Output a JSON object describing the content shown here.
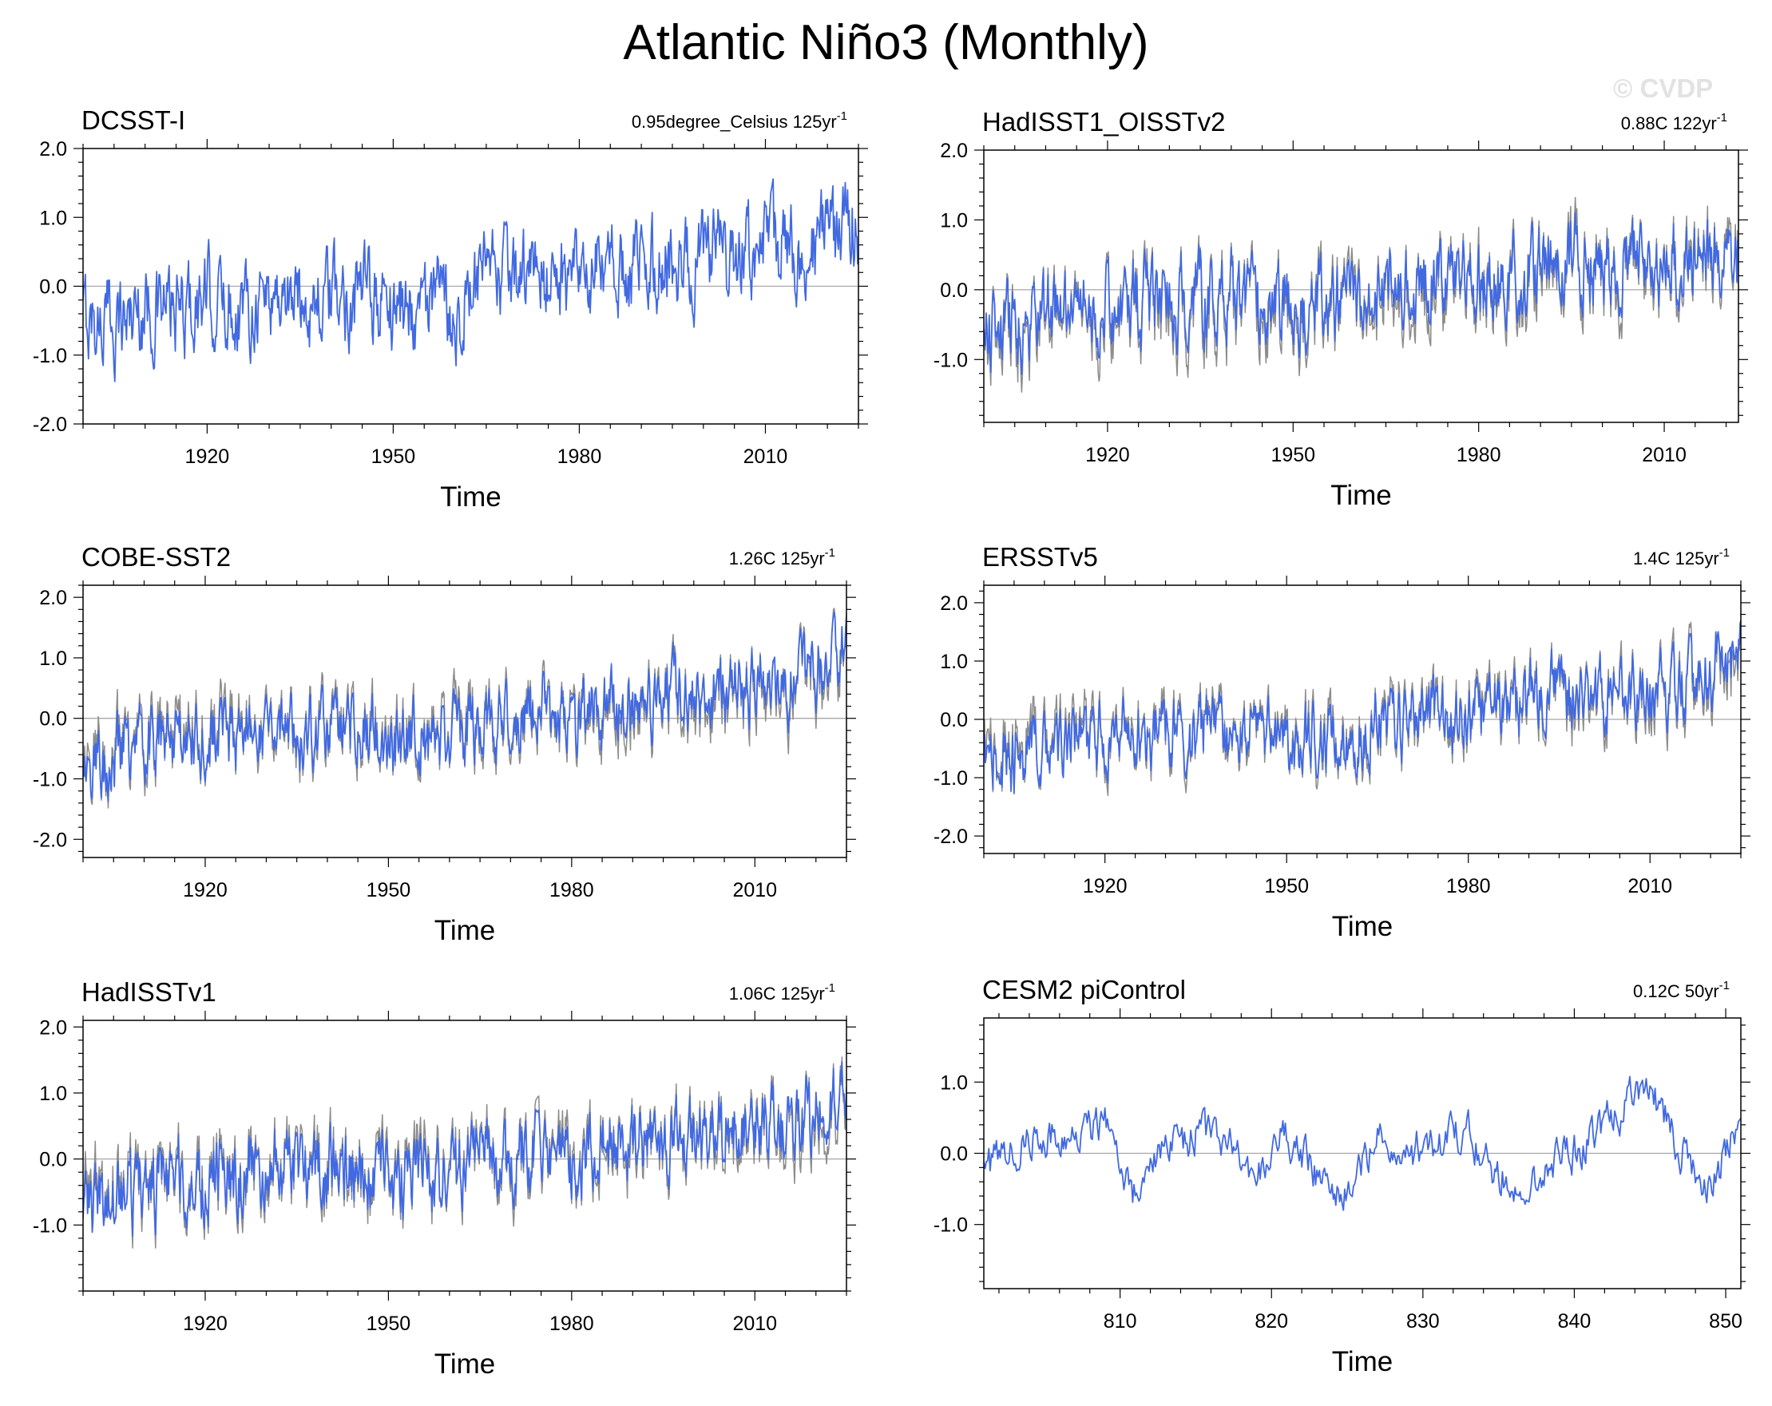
{
  "title": "Atlantic Niño3 (Monthly)",
  "watermark": "© CVDP",
  "colors": {
    "primary": "#4169e1",
    "secondary": "#8c8c8c",
    "zero_line": "#a6a6a6"
  },
  "chart_data": [
    {
      "type": "line",
      "title": "DCSST-I",
      "subtitle": "0.95degree_Celsius 125yr",
      "subtitle_sup": "-1",
      "xlabel": "Time",
      "ylabel": "",
      "xlim": [
        1900,
        2025
      ],
      "ylim": [
        -2.0,
        2.0
      ],
      "xticks": [
        "1920",
        "1950",
        "1980",
        "2010"
      ],
      "yticks": [
        "2.0",
        "1.0",
        "0.0",
        "-1.0",
        "-2.0"
      ],
      "series": [
        {
          "color": "#4169e1",
          "x": [
            1900,
            1905,
            1910,
            1915,
            1920,
            1925,
            1930,
            1935,
            1940,
            1945,
            1950,
            1955,
            1960,
            1965,
            1970,
            1975,
            1980,
            1985,
            1990,
            1995,
            2000,
            2005,
            2010,
            2015,
            2020,
            2024
          ],
          "y": [
            -0.5,
            -0.5,
            -0.3,
            -0.4,
            -0.2,
            -0.3,
            -0.1,
            -0.2,
            -0.2,
            -0.1,
            -0.3,
            -0.2,
            -0.4,
            0.1,
            0.1,
            0.2,
            0.0,
            0.2,
            0.3,
            0.3,
            0.4,
            0.4,
            0.6,
            0.5,
            0.7,
            0.9
          ]
        }
      ]
    },
    {
      "type": "line",
      "title": "HadISST1_OISSTv2",
      "subtitle": "0.88C 122yr",
      "subtitle_sup": "-1",
      "xlabel": "Time",
      "ylabel": "",
      "xlim": [
        1900,
        2022
      ],
      "ylim": [
        -1.9,
        2.0
      ],
      "xticks": [
        "1920",
        "1950",
        "1980",
        "2010"
      ],
      "yticks": [
        "2.0",
        "1.0",
        "0.0",
        "-1.0"
      ],
      "series": [
        {
          "color": "#8c8c8c",
          "x": [
            1900,
            1905,
            1910,
            1915,
            1920,
            1925,
            1930,
            1935,
            1940,
            1945,
            1950,
            1955,
            1960,
            1965,
            1970,
            1975,
            1980,
            1985,
            1990,
            1995,
            2000,
            2005,
            2010,
            2015,
            2020,
            2022
          ],
          "y": [
            -0.7,
            -0.6,
            -0.4,
            -0.3,
            -0.3,
            -0.2,
            -0.2,
            -0.2,
            -0.3,
            -0.2,
            -0.4,
            -0.2,
            -0.2,
            0.0,
            0.0,
            0.1,
            0.1,
            0.2,
            0.2,
            0.3,
            0.3,
            0.3,
            0.4,
            0.4,
            0.6,
            0.5
          ]
        },
        {
          "color": "#4169e1",
          "x": [
            1900,
            1905,
            1910,
            1915,
            1920,
            1925,
            1930,
            1935,
            1940,
            1945,
            1950,
            1955,
            1960,
            1965,
            1970,
            1975,
            1980,
            1985,
            1990,
            1995,
            2000,
            2005,
            2010,
            2015,
            2020,
            2022
          ],
          "y": [
            -0.6,
            -0.5,
            -0.3,
            -0.3,
            -0.2,
            -0.2,
            -0.1,
            -0.1,
            -0.2,
            -0.1,
            -0.3,
            -0.2,
            -0.2,
            0.1,
            0.1,
            0.2,
            0.1,
            0.2,
            0.3,
            0.3,
            0.3,
            0.4,
            0.4,
            0.4,
            0.6,
            0.4
          ]
        }
      ]
    },
    {
      "type": "line",
      "title": "COBE-SST2",
      "subtitle": "1.26C 125yr",
      "subtitle_sup": "-1",
      "xlabel": "Time",
      "ylabel": "",
      "xlim": [
        1900,
        2025
      ],
      "ylim": [
        -2.3,
        2.2
      ],
      "xticks": [
        "1920",
        "1950",
        "1980",
        "2010"
      ],
      "yticks": [
        "2.0",
        "1.0",
        "0.0",
        "-1.0",
        "-2.0"
      ],
      "series": [
        {
          "color": "#8c8c8c",
          "x": [
            1900,
            1905,
            1910,
            1915,
            1920,
            1925,
            1930,
            1935,
            1940,
            1945,
            1950,
            1955,
            1960,
            1965,
            1970,
            1975,
            1980,
            1985,
            1990,
            1995,
            2000,
            2005,
            2010,
            2015,
            2020,
            2024
          ],
          "y": [
            -0.6,
            -0.5,
            -0.4,
            -0.3,
            -0.2,
            -0.2,
            -0.1,
            -0.2,
            -0.2,
            -0.1,
            -0.3,
            -0.3,
            -0.3,
            0.0,
            0.0,
            0.1,
            0.0,
            0.1,
            0.2,
            0.3,
            0.3,
            0.3,
            0.5,
            0.4,
            0.7,
            0.9
          ]
        },
        {
          "color": "#4169e1",
          "x": [
            1900,
            1905,
            1910,
            1915,
            1920,
            1925,
            1930,
            1935,
            1940,
            1945,
            1950,
            1955,
            1960,
            1965,
            1970,
            1975,
            1980,
            1985,
            1990,
            1995,
            2000,
            2005,
            2010,
            2015,
            2020,
            2024
          ],
          "y": [
            -0.7,
            -0.6,
            -0.4,
            -0.4,
            -0.3,
            -0.3,
            -0.1,
            -0.2,
            -0.2,
            -0.1,
            -0.4,
            -0.3,
            -0.4,
            0.0,
            0.0,
            0.1,
            0.0,
            0.2,
            0.3,
            0.3,
            0.4,
            0.4,
            0.6,
            0.5,
            0.8,
            1.0
          ]
        }
      ]
    },
    {
      "type": "line",
      "title": "ERSSTv5",
      "subtitle": "1.4C 125yr",
      "subtitle_sup": "-1",
      "xlabel": "Time",
      "ylabel": "",
      "xlim": [
        1900,
        2025
      ],
      "ylim": [
        -2.3,
        2.3
      ],
      "xticks": [
        "1920",
        "1950",
        "1980",
        "2010"
      ],
      "yticks": [
        "2.0",
        "1.0",
        "0.0",
        "-1.0",
        "-2.0"
      ],
      "series": [
        {
          "color": "#8c8c8c",
          "x": [
            1900,
            1905,
            1910,
            1915,
            1920,
            1925,
            1930,
            1935,
            1940,
            1945,
            1950,
            1955,
            1960,
            1965,
            1970,
            1975,
            1980,
            1985,
            1990,
            1995,
            2000,
            2005,
            2010,
            2015,
            2020,
            2024
          ],
          "y": [
            -0.7,
            -0.6,
            -0.4,
            -0.3,
            -0.3,
            -0.2,
            -0.2,
            -0.2,
            -0.2,
            -0.1,
            -0.3,
            -0.3,
            -0.3,
            0.0,
            0.0,
            0.1,
            0.1,
            0.2,
            0.3,
            0.3,
            0.3,
            0.4,
            0.5,
            0.5,
            0.7,
            0.9
          ]
        },
        {
          "color": "#4169e1",
          "x": [
            1900,
            1905,
            1910,
            1915,
            1920,
            1925,
            1930,
            1935,
            1940,
            1945,
            1950,
            1955,
            1960,
            1965,
            1970,
            1975,
            1980,
            1985,
            1990,
            1995,
            2000,
            2005,
            2010,
            2015,
            2020,
            2024
          ],
          "y": [
            -0.8,
            -0.7,
            -0.5,
            -0.4,
            -0.3,
            -0.3,
            -0.2,
            -0.2,
            -0.2,
            -0.1,
            -0.4,
            -0.3,
            -0.4,
            0.0,
            0.0,
            0.1,
            0.1,
            0.2,
            0.3,
            0.4,
            0.4,
            0.4,
            0.6,
            0.5,
            0.8,
            1.1
          ]
        }
      ]
    },
    {
      "type": "line",
      "title": "HadISSTv1",
      "subtitle": "1.06C 125yr",
      "subtitle_sup": "-1",
      "xlabel": "Time",
      "ylabel": "",
      "xlim": [
        1900,
        2025
      ],
      "ylim": [
        -2.0,
        2.1
      ],
      "xticks": [
        "1920",
        "1950",
        "1980",
        "2010"
      ],
      "yticks": [
        "2.0",
        "1.0",
        "0.0",
        "-1.0"
      ],
      "series": [
        {
          "color": "#8c8c8c",
          "x": [
            1900,
            1905,
            1910,
            1915,
            1920,
            1925,
            1930,
            1935,
            1940,
            1945,
            1950,
            1955,
            1960,
            1965,
            1970,
            1975,
            1980,
            1985,
            1990,
            1995,
            2000,
            2005,
            2010,
            2015,
            2020,
            2024
          ],
          "y": [
            -0.6,
            -0.5,
            -0.4,
            -0.3,
            -0.2,
            -0.2,
            -0.1,
            -0.2,
            -0.2,
            -0.1,
            -0.3,
            -0.2,
            -0.3,
            0.0,
            0.0,
            0.1,
            0.1,
            0.2,
            0.2,
            0.3,
            0.3,
            0.3,
            0.5,
            0.4,
            0.6,
            0.8
          ]
        },
        {
          "color": "#4169e1",
          "x": [
            1900,
            1905,
            1910,
            1915,
            1920,
            1925,
            1930,
            1935,
            1940,
            1945,
            1950,
            1955,
            1960,
            1965,
            1970,
            1975,
            1980,
            1985,
            1990,
            1995,
            2000,
            2005,
            2010,
            2015,
            2020,
            2024
          ],
          "y": [
            -0.7,
            -0.6,
            -0.4,
            -0.3,
            -0.3,
            -0.2,
            -0.1,
            -0.2,
            -0.2,
            -0.1,
            -0.3,
            -0.3,
            -0.3,
            0.0,
            0.0,
            0.1,
            0.0,
            0.2,
            0.3,
            0.3,
            0.3,
            0.4,
            0.5,
            0.5,
            0.7,
            0.9
          ]
        }
      ]
    },
    {
      "type": "line",
      "title": "CESM2 piControl",
      "subtitle": "0.12C 50yr",
      "subtitle_sup": "-1",
      "xlabel": "Time",
      "ylabel": "",
      "xlim": [
        801,
        851
      ],
      "ylim": [
        -1.9,
        1.9
      ],
      "xticks": [
        "810",
        "820",
        "830",
        "840",
        "850"
      ],
      "yticks": [
        "1.0",
        "0.0",
        "-1.0"
      ],
      "series": [
        {
          "color": "#4169e1",
          "x": [
            801,
            803,
            805,
            807,
            809,
            811,
            813,
            815,
            817,
            819,
            821,
            823,
            825,
            827,
            829,
            831,
            833,
            835,
            837,
            839,
            841,
            843,
            845,
            847,
            849,
            851
          ],
          "y": [
            -0.3,
            0.1,
            0.3,
            0.2,
            0.5,
            -0.6,
            0.0,
            0.3,
            0.2,
            -0.4,
            0.3,
            -0.3,
            -0.6,
            0.2,
            0.0,
            0.1,
            0.3,
            -0.3,
            -0.4,
            -0.1,
            0.2,
            0.6,
            0.9,
            0.1,
            -0.5,
            0.6
          ]
        }
      ]
    }
  ]
}
